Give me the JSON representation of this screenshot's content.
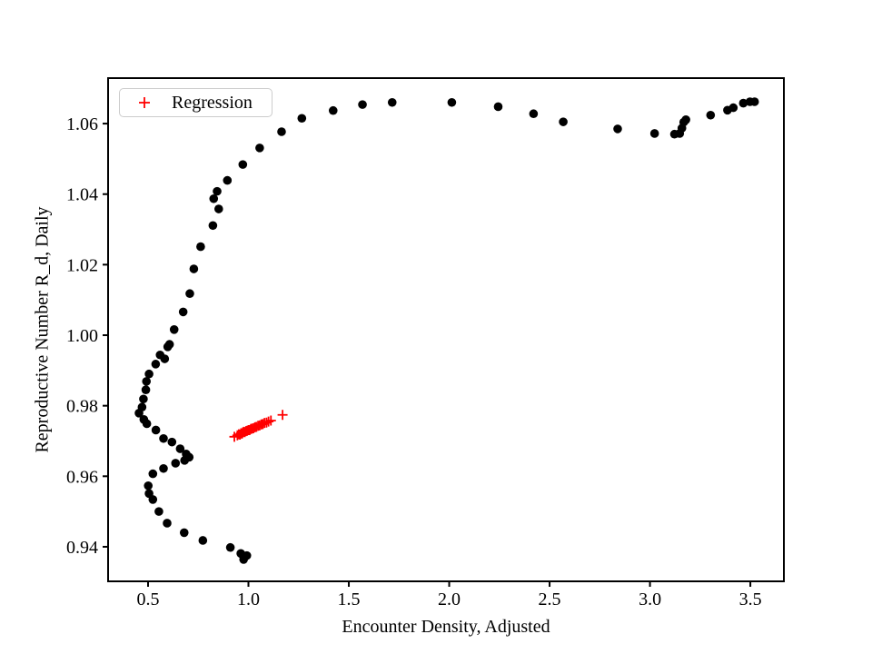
{
  "figure": {
    "background": "#ffffff"
  },
  "legend": {
    "label": "Regression",
    "marker": "plus-icon",
    "marker_color": "#ff0000",
    "position": "upper-left"
  },
  "chart_data": {
    "type": "scatter",
    "title": "",
    "xlabel": "Encounter Density, Adjusted",
    "ylabel": "Reproductive Number R_d, Daily",
    "xlim": [
      0.301,
      3.667
    ],
    "ylim": [
      0.9302,
      1.0729
    ],
    "xticks": [
      0.5,
      1.0,
      1.5,
      2.0,
      2.5,
      3.0,
      3.5
    ],
    "xtick_labels": [
      "0.5",
      "1.0",
      "1.5",
      "2.0",
      "2.5",
      "3.0",
      "3.5"
    ],
    "yticks": [
      0.94,
      0.96,
      0.98,
      1.0,
      1.02,
      1.04,
      1.06
    ],
    "ytick_labels": [
      "0.94",
      "0.96",
      "0.98",
      "1.00",
      "1.02",
      "1.04",
      "1.06"
    ],
    "grid": false,
    "legend_position": "upper-left",
    "series": [
      {
        "name": "",
        "marker": "circle",
        "color": "#000000",
        "in_legend": false,
        "points": [
          [
            0.976,
            0.9364
          ],
          [
            0.992,
            0.9375
          ],
          [
            0.962,
            0.9381
          ],
          [
            0.91,
            0.9398
          ],
          [
            0.773,
            0.9418
          ],
          [
            0.68,
            0.944
          ],
          [
            0.595,
            0.9467
          ],
          [
            0.554,
            0.95
          ],
          [
            0.524,
            0.9534
          ],
          [
            0.505,
            0.9551
          ],
          [
            0.501,
            0.9573
          ],
          [
            0.524,
            0.9607
          ],
          [
            0.577,
            0.9622
          ],
          [
            0.637,
            0.9637
          ],
          [
            0.682,
            0.9645
          ],
          [
            0.705,
            0.9654
          ],
          [
            0.69,
            0.9663
          ],
          [
            0.66,
            0.9678
          ],
          [
            0.619,
            0.9697
          ],
          [
            0.577,
            0.9707
          ],
          [
            0.539,
            0.9731
          ],
          [
            0.494,
            0.9749
          ],
          [
            0.479,
            0.9761
          ],
          [
            0.455,
            0.9779
          ],
          [
            0.47,
            0.9796
          ],
          [
            0.477,
            0.9819
          ],
          [
            0.489,
            0.9845
          ],
          [
            0.492,
            0.9869
          ],
          [
            0.505,
            0.989
          ],
          [
            0.538,
            0.9918
          ],
          [
            0.56,
            0.9944
          ],
          [
            0.583,
            0.9933
          ],
          [
            0.598,
            0.9967
          ],
          [
            0.607,
            0.9974
          ],
          [
            0.63,
            1.0016
          ],
          [
            0.675,
            1.0066
          ],
          [
            0.708,
            1.0118
          ],
          [
            0.728,
            1.0188
          ],
          [
            0.762,
            1.0251
          ],
          [
            0.823,
            1.0311
          ],
          [
            0.852,
            1.0358
          ],
          [
            0.827,
            1.0387
          ],
          [
            0.844,
            1.0408
          ],
          [
            0.895,
            1.0439
          ],
          [
            0.972,
            1.0484
          ],
          [
            1.056,
            1.0531
          ],
          [
            1.165,
            1.0577
          ],
          [
            1.266,
            1.0615
          ],
          [
            1.422,
            1.0637
          ],
          [
            1.568,
            1.0654
          ],
          [
            1.716,
            1.066
          ],
          [
            2.013,
            1.066
          ],
          [
            2.244,
            1.0648
          ],
          [
            2.42,
            1.0628
          ],
          [
            2.568,
            1.0605
          ],
          [
            2.839,
            1.0585
          ],
          [
            3.023,
            1.0572
          ],
          [
            3.122,
            1.057
          ],
          [
            3.148,
            1.0572
          ],
          [
            3.159,
            1.0587
          ],
          [
            3.168,
            1.0604
          ],
          [
            3.179,
            1.0611
          ],
          [
            3.302,
            1.0624
          ],
          [
            3.386,
            1.0638
          ],
          [
            3.415,
            1.0645
          ],
          [
            3.465,
            1.0658
          ],
          [
            3.498,
            1.0662
          ],
          [
            3.521,
            1.0662
          ]
        ]
      },
      {
        "name": "Regression",
        "marker": "plus",
        "color": "#ff0000",
        "in_legend": true,
        "points": [
          [
            0.93,
            0.9712
          ],
          [
            0.945,
            0.9716
          ],
          [
            0.952,
            0.9719
          ],
          [
            0.958,
            0.9718
          ],
          [
            0.963,
            0.9722
          ],
          [
            0.968,
            0.9721
          ],
          [
            0.972,
            0.9724
          ],
          [
            0.977,
            0.9726
          ],
          [
            0.982,
            0.9725
          ],
          [
            0.988,
            0.9728
          ],
          [
            0.994,
            0.9729
          ],
          [
            1.0,
            0.9731
          ],
          [
            1.006,
            0.9731
          ],
          [
            1.012,
            0.9734
          ],
          [
            1.018,
            0.9735
          ],
          [
            1.025,
            0.9736
          ],
          [
            1.032,
            0.9739
          ],
          [
            1.04,
            0.974
          ],
          [
            1.048,
            0.9743
          ],
          [
            1.056,
            0.9744
          ],
          [
            1.064,
            0.9747
          ],
          [
            1.072,
            0.9748
          ],
          [
            1.08,
            0.9751
          ],
          [
            1.09,
            0.9752
          ],
          [
            1.1,
            0.9755
          ],
          [
            1.112,
            0.9758
          ],
          [
            1.17,
            0.9774
          ]
        ]
      }
    ]
  }
}
